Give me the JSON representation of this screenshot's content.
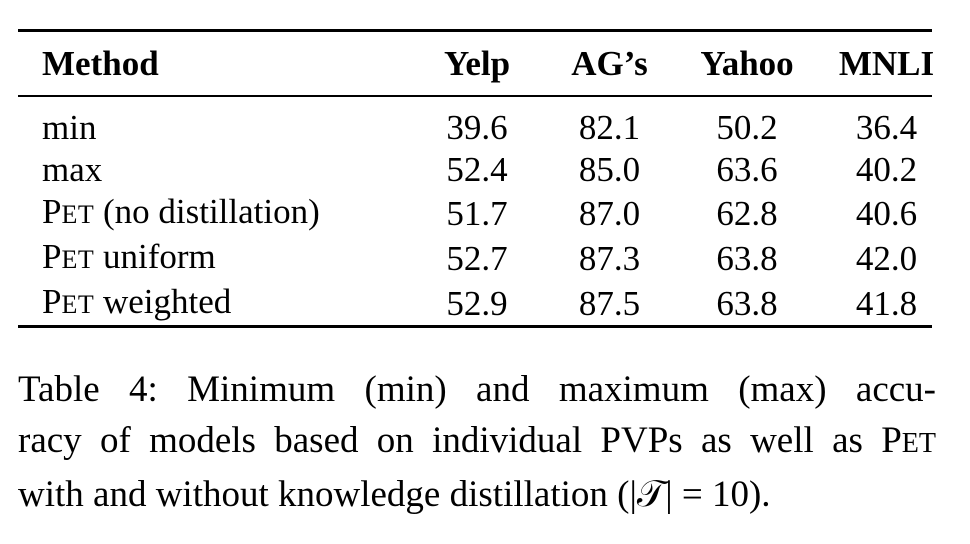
{
  "table": {
    "headers": [
      "Method",
      "Yelp",
      "AG’s",
      "Yahoo",
      "MNLI"
    ],
    "rows": [
      {
        "method_prefix": "",
        "method_suffix": "min",
        "values": [
          "39.6",
          "82.1",
          "50.2",
          "36.4"
        ],
        "bold": [
          false,
          false,
          false,
          false
        ]
      },
      {
        "method_prefix": "",
        "method_suffix": "max",
        "values": [
          "52.4",
          "85.0",
          "63.6",
          "40.2"
        ],
        "bold": [
          false,
          false,
          false,
          false
        ]
      },
      {
        "method_prefix": "PET",
        "method_suffix": " (no distillation)",
        "values": [
          "51.7",
          "87.0",
          "62.8",
          "40.6"
        ],
        "bold": [
          false,
          false,
          false,
          false
        ]
      },
      {
        "method_prefix": "PET",
        "method_suffix": " uniform",
        "values": [
          "52.7",
          "87.3",
          "63.8",
          "42.0"
        ],
        "bold": [
          false,
          false,
          true,
          true
        ]
      },
      {
        "method_prefix": "PET",
        "method_suffix": " weighted",
        "values": [
          "52.9",
          "87.5",
          "63.8",
          "41.8"
        ],
        "bold": [
          true,
          true,
          true,
          false
        ]
      }
    ]
  },
  "caption": {
    "line1": "Table 4:  Minimum (min) and maximum (max) accu-",
    "line2": "racy of models based on individual PVPs as well as PET",
    "line3": "with and without knowledge distillation (|𝒯| = 10)."
  }
}
